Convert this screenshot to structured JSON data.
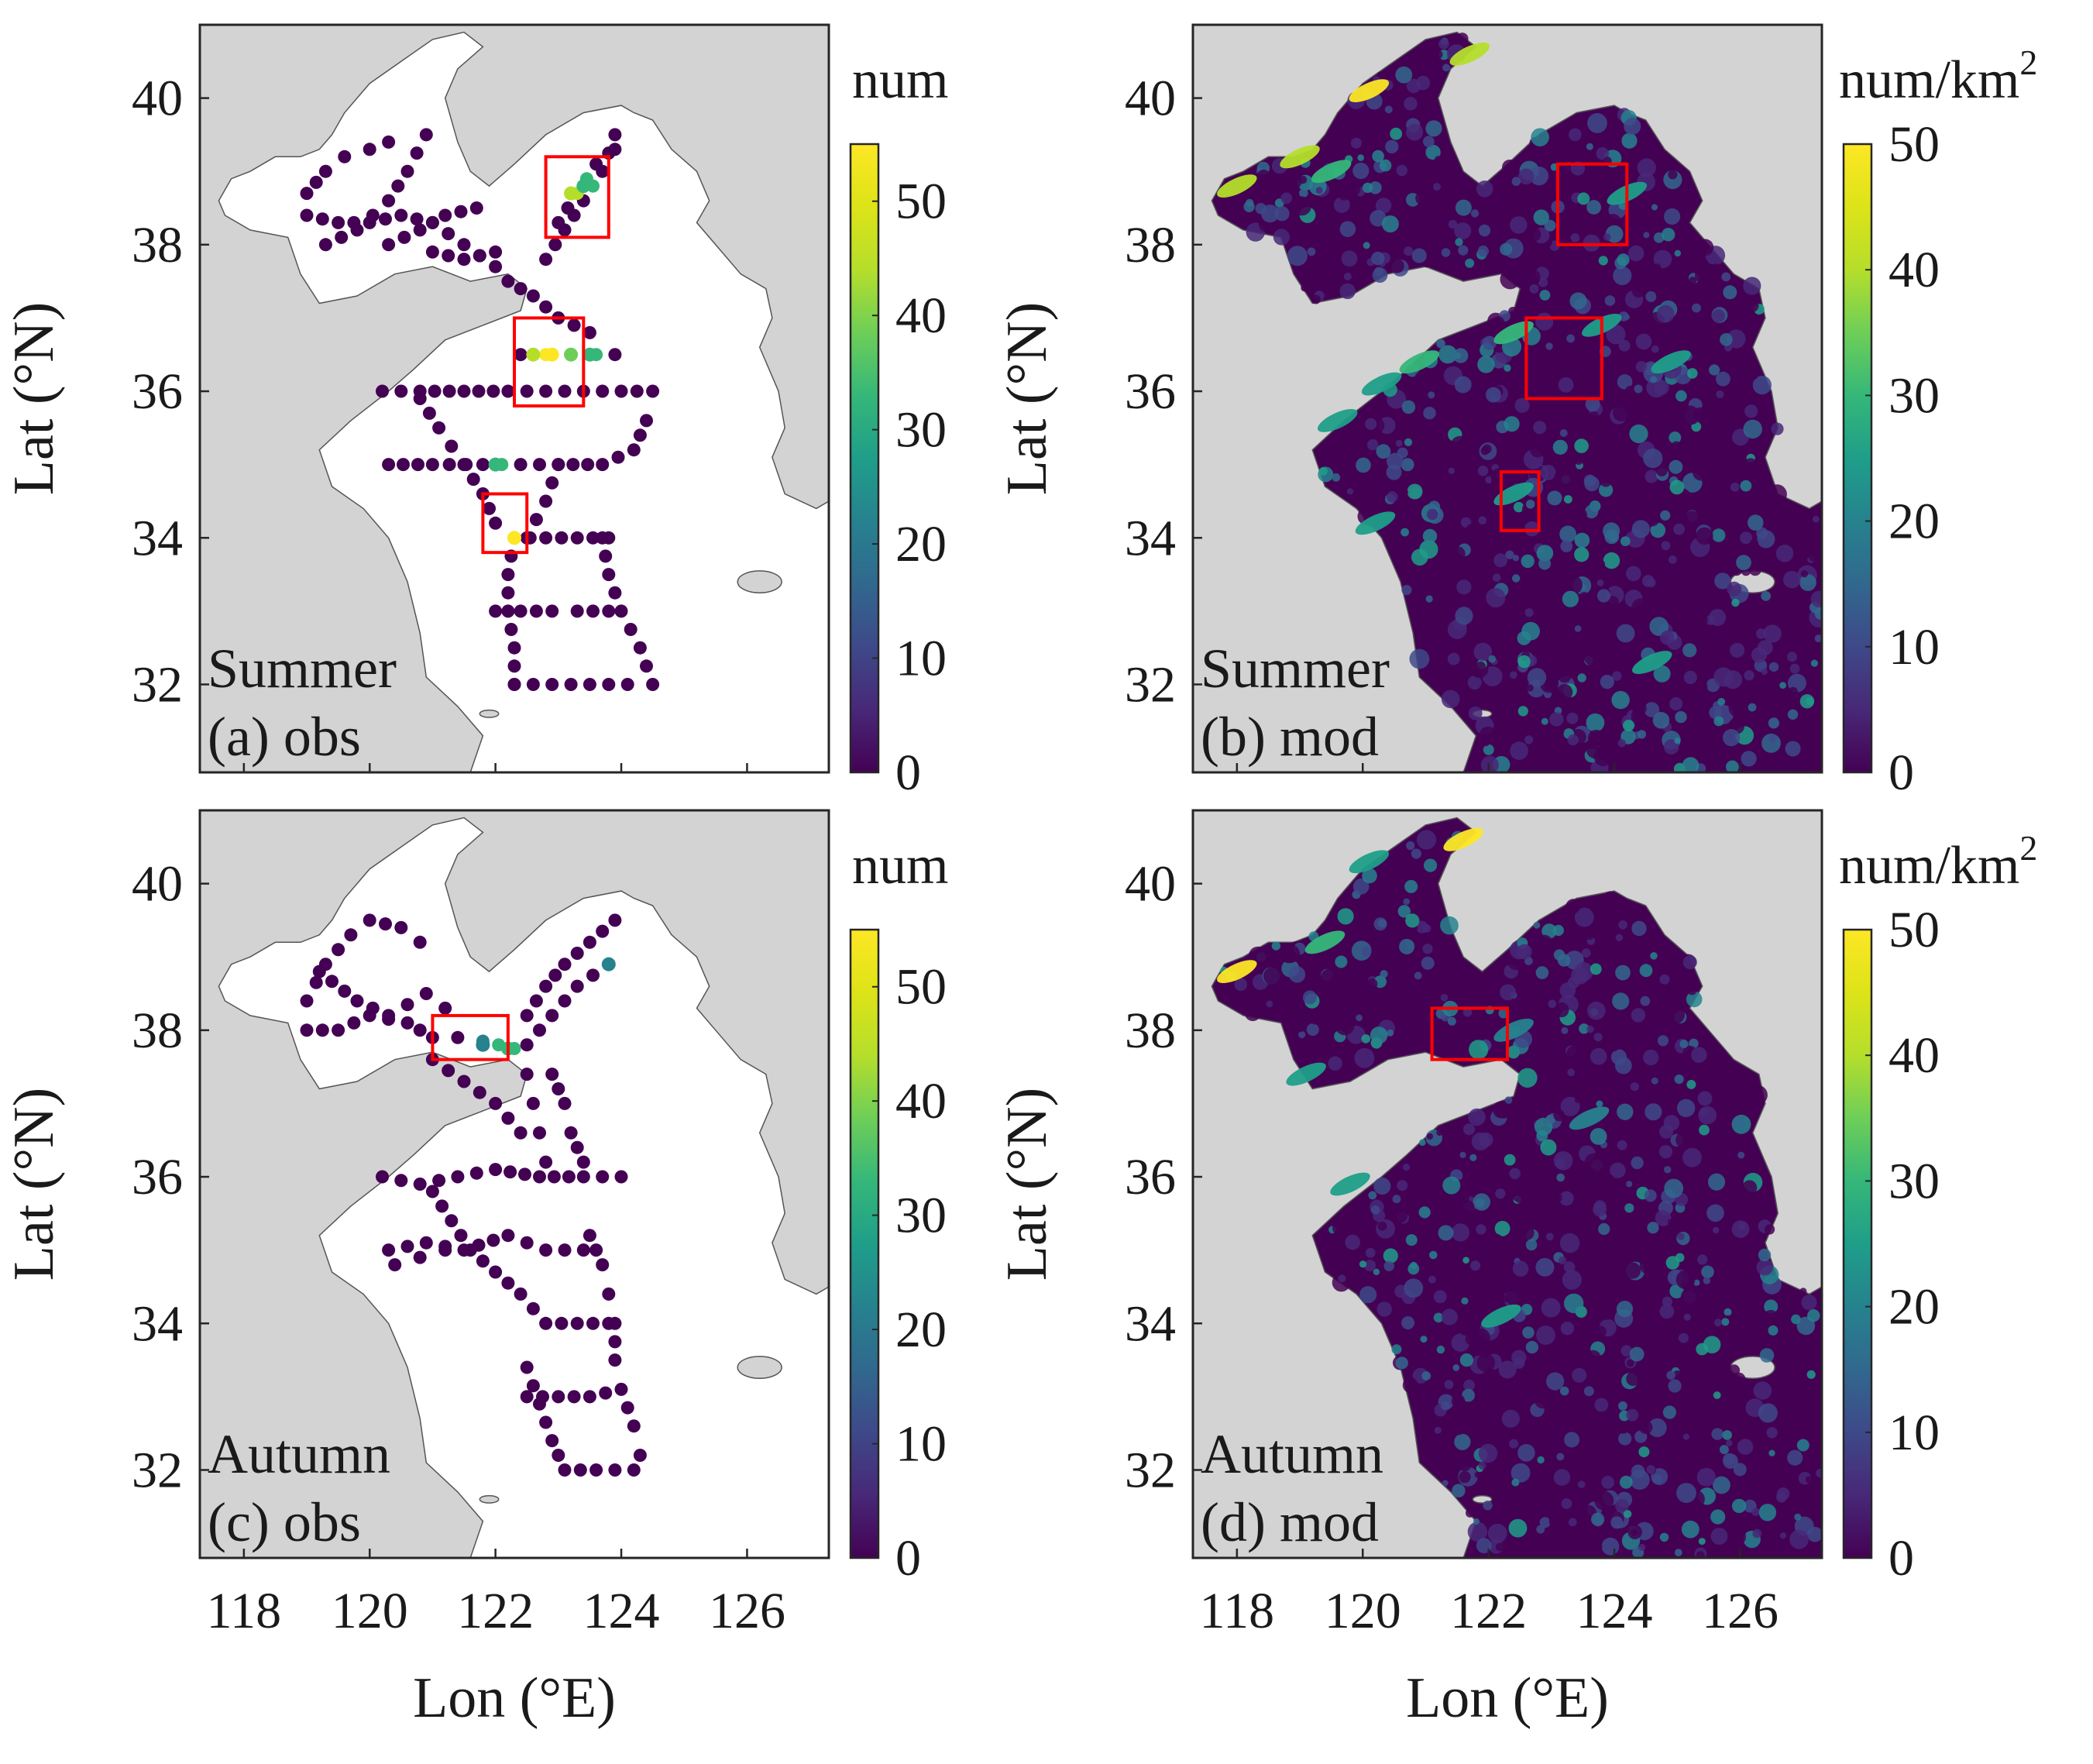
{
  "figure": {
    "panels": [
      {
        "id": "a",
        "season": "Summer",
        "tag": "(a) obs",
        "kind": "obs",
        "cb_title": "num",
        "cb_max": 55,
        "cb_ticks": [
          "0",
          "10",
          "20",
          "30",
          "40",
          "50"
        ]
      },
      {
        "id": "b",
        "season": "Summer",
        "tag": "(b) mod",
        "kind": "mod",
        "cb_title": "num/km",
        "cb_sup": "2",
        "cb_max": 50,
        "cb_ticks": [
          "0",
          "10",
          "20",
          "30",
          "40",
          "50"
        ]
      },
      {
        "id": "c",
        "season": "Autumn",
        "tag": "(c) obs",
        "kind": "obs",
        "cb_title": "num",
        "cb_max": 55,
        "cb_ticks": [
          "0",
          "10",
          "20",
          "30",
          "40",
          "50"
        ]
      },
      {
        "id": "d",
        "season": "Autumn",
        "tag": "(d) mod",
        "kind": "mod",
        "cb_title": "num/km",
        "cb_sup": "2",
        "cb_max": 50,
        "cb_ticks": [
          "0",
          "10",
          "20",
          "30",
          "40",
          "50"
        ]
      }
    ],
    "x_label": "Lon (°E)",
    "y_label": "Lat (°N)",
    "x_ticks": [
      "118",
      "120",
      "122",
      "124",
      "126"
    ],
    "y_ticks": [
      "32",
      "34",
      "36",
      "38",
      "40"
    ],
    "colors": {
      "land": "#d3d3d3",
      "sea_obs": "#ffffff",
      "sea_mod": "#440154",
      "box": "#ff0000",
      "axis": "#262626"
    }
  },
  "chart_data": {
    "type": "map",
    "projection": "lon-lat",
    "xlim": [
      117.3,
      127.3
    ],
    "ylim": [
      30.8,
      41.0
    ],
    "colormap": "viridis",
    "panels": [
      {
        "id": "a",
        "season": "Summer",
        "source": "obs",
        "unit": "num",
        "clim": [
          0,
          55
        ],
        "highlight_boxes": [
          [
            122.8,
            123.8,
            38.1,
            39.2
          ],
          [
            122.3,
            123.4,
            35.8,
            37.0
          ],
          [
            121.8,
            122.5,
            33.8,
            34.6
          ]
        ],
        "hotspots": [
          {
            "lon": 122.6,
            "lat": 36.5,
            "value": 50
          },
          {
            "lon": 122.9,
            "lat": 36.5,
            "value": 52
          },
          {
            "lon": 123.2,
            "lat": 36.5,
            "value": 45
          },
          {
            "lon": 123.5,
            "lat": 36.5,
            "value": 38
          },
          {
            "lon": 123.2,
            "lat": 38.7,
            "value": 48
          },
          {
            "lon": 123.4,
            "lat": 38.8,
            "value": 35
          },
          {
            "lon": 122.3,
            "lat": 34.0,
            "value": 52
          },
          {
            "lon": 122.0,
            "lat": 35.0,
            "value": 38
          }
        ]
      },
      {
        "id": "b",
        "season": "Summer",
        "source": "mod",
        "unit": "num/km2",
        "clim": [
          0,
          50
        ],
        "highlight_boxes": [
          [
            123.1,
            124.2,
            38.0,
            39.1
          ],
          [
            122.6,
            123.8,
            35.9,
            37.0
          ],
          [
            122.2,
            122.8,
            34.1,
            34.9
          ]
        ]
      },
      {
        "id": "c",
        "season": "Autumn",
        "source": "obs",
        "unit": "num",
        "clim": [
          0,
          55
        ],
        "highlight_boxes": [
          [
            121.0,
            122.2,
            37.6,
            38.2
          ]
        ],
        "hotspots": [
          {
            "lon": 122.2,
            "lat": 37.75,
            "value": 35
          },
          {
            "lon": 121.8,
            "lat": 37.8,
            "value": 25
          },
          {
            "lon": 123.8,
            "lat": 38.9,
            "value": 25
          }
        ]
      },
      {
        "id": "d",
        "season": "Autumn",
        "source": "mod",
        "unit": "num/km2",
        "clim": [
          0,
          50
        ],
        "highlight_boxes": [
          [
            121.1,
            122.3,
            37.6,
            38.3
          ]
        ]
      }
    ]
  }
}
